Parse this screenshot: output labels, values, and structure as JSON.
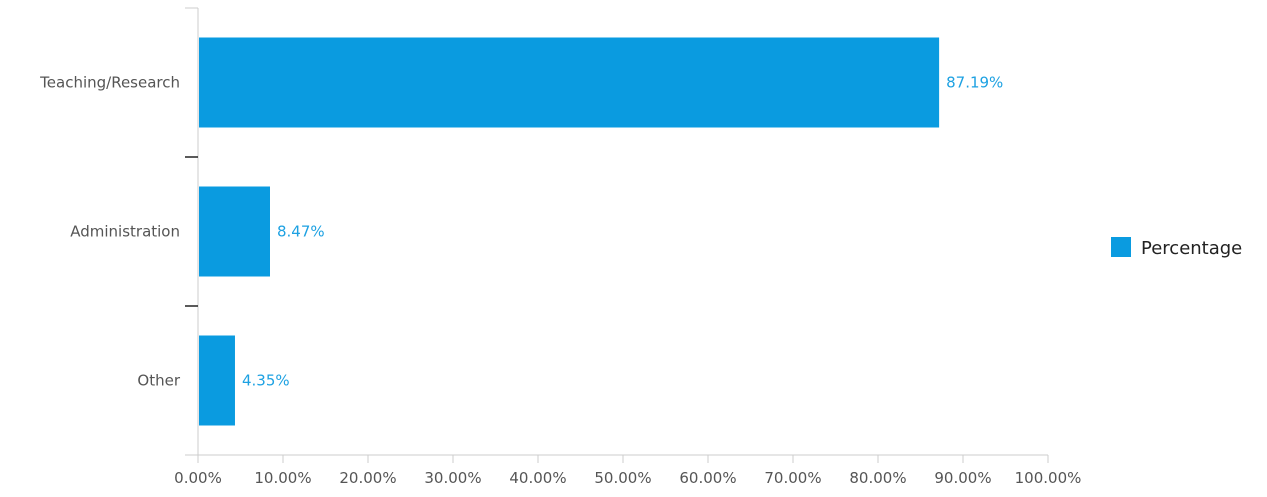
{
  "chart_data": {
    "type": "bar",
    "orientation": "horizontal",
    "categories": [
      "Teaching/Research",
      "Administration",
      "Other"
    ],
    "series": [
      {
        "name": "Percentage",
        "values": [
          87.19,
          8.47,
          4.35
        ],
        "color": "#0a9be0"
      }
    ],
    "data_labels": [
      "87.19%",
      "8.47%",
      "4.35%"
    ],
    "xlim": [
      0,
      100
    ],
    "xticks": [
      0,
      10,
      20,
      30,
      40,
      50,
      60,
      70,
      80,
      90,
      100
    ],
    "xtick_labels": [
      "0.00%",
      "10.00%",
      "20.00%",
      "30.00%",
      "40.00%",
      "50.00%",
      "60.00%",
      "70.00%",
      "80.00%",
      "90.00%",
      "100.00%"
    ],
    "grid": false,
    "legend_position": "right"
  }
}
